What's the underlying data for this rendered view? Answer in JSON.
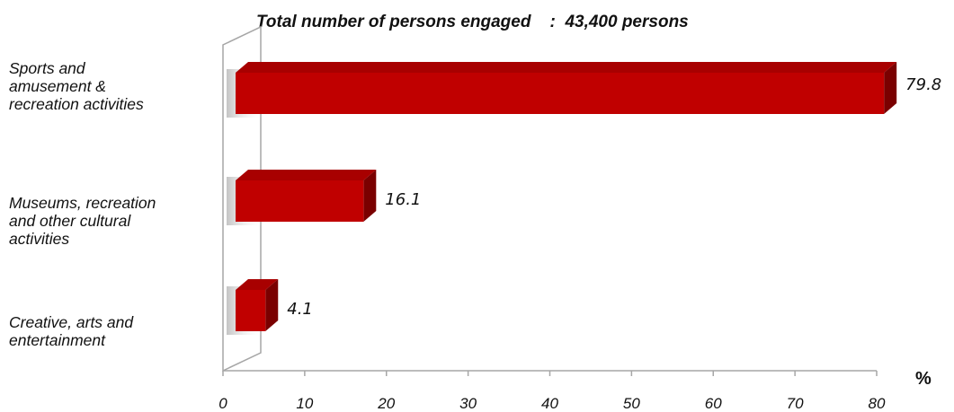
{
  "chart_data": {
    "type": "bar",
    "orientation": "horizontal",
    "title": "Total number of persons engaged    :  43,400 persons",
    "categories": [
      "Sports and amusement & recreation activities",
      "Museums, recreation and other cultural activities",
      "Creative, arts and entertainment"
    ],
    "category_lines": [
      [
        "Sports and",
        "amusement &",
        "recreation activities"
      ],
      [
        "Museums, recreation",
        "and other cultural",
        "activities"
      ],
      [
        "Creative, arts and",
        "entertainment"
      ]
    ],
    "values": [
      79.8,
      16.1,
      4.1
    ],
    "value_labels": [
      "79.8",
      "16.1",
      "4.1"
    ],
    "xlim": [
      0,
      80
    ],
    "xticks": [
      "0",
      "10",
      "20",
      "30",
      "40",
      "50",
      "60",
      "70",
      "80"
    ],
    "xlabel": "%",
    "ylabel": "",
    "grid": false,
    "bar_color": "#c00000",
    "style": "3d"
  }
}
